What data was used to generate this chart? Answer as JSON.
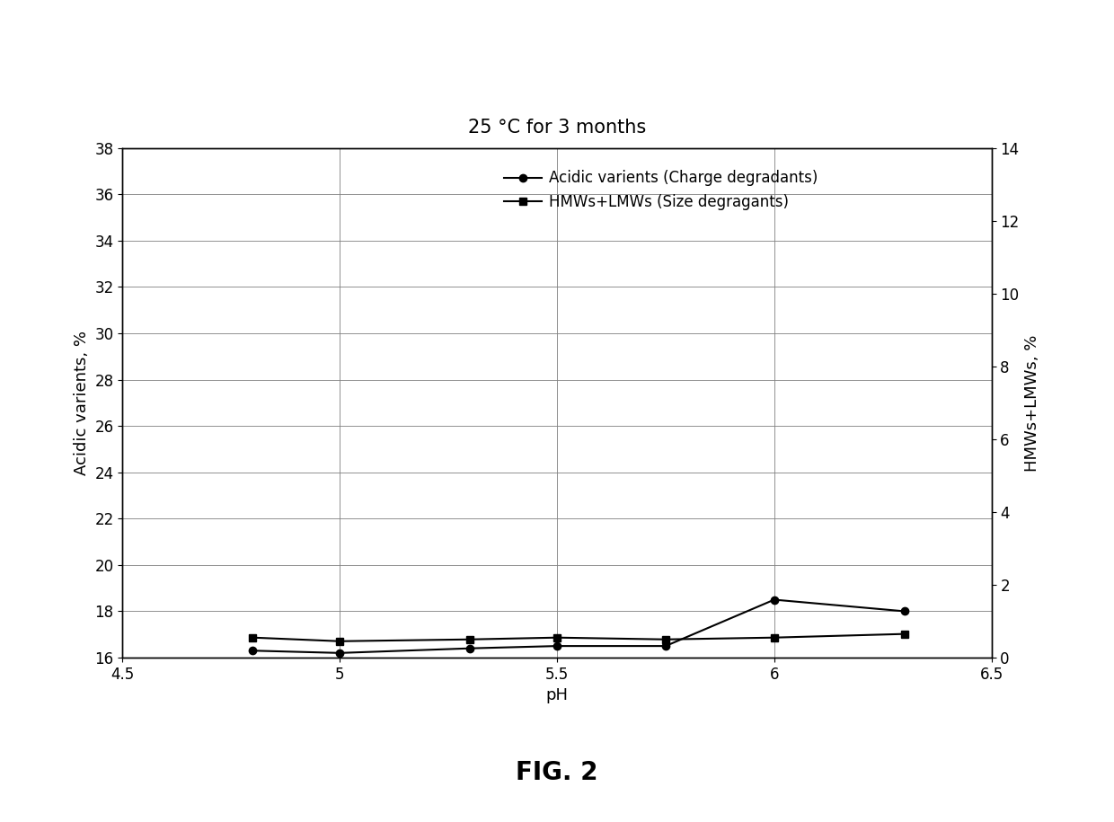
{
  "title": "25 °C for 3 months",
  "xlabel": "pH",
  "ylabel_left": "Acidic varients, %",
  "ylabel_right": "HMWs+LMWs, %",
  "xlim": [
    4.5,
    6.5
  ],
  "ylim_left": [
    16,
    38
  ],
  "ylim_right": [
    0,
    14
  ],
  "yticks_left": [
    16,
    18,
    20,
    22,
    24,
    26,
    28,
    30,
    32,
    34,
    36,
    38
  ],
  "yticks_right": [
    0,
    2,
    4,
    6,
    8,
    10,
    12,
    14
  ],
  "xticks": [
    4.5,
    5.0,
    5.5,
    6.0,
    6.5
  ],
  "acidic_x": [
    4.8,
    5.0,
    5.3,
    5.5,
    5.75,
    6.0,
    6.3
  ],
  "acidic_y": [
    16.3,
    16.2,
    16.4,
    16.5,
    16.5,
    18.5,
    18.0
  ],
  "hmw_x": [
    4.8,
    5.0,
    5.3,
    5.5,
    5.75,
    6.0,
    6.3
  ],
  "hmw_y": [
    0.55,
    0.45,
    0.5,
    0.55,
    0.5,
    0.55,
    0.65
  ],
  "legend_acidic": "Acidic varients (Charge degradants)",
  "legend_hmw": "HMWs+LMWs (Size degragants)",
  "line_color": "#000000",
  "fig_label": "FIG. 2",
  "title_fontsize": 15,
  "label_fontsize": 13,
  "tick_fontsize": 12,
  "legend_fontsize": 12,
  "figlabel_fontsize": 20
}
